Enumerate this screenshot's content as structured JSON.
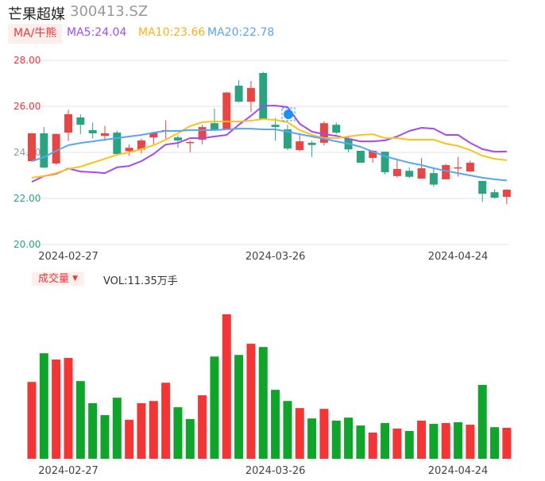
{
  "header": {
    "name": "芒果超媒",
    "code": "300413.SZ"
  },
  "legend": {
    "ma_button": "MA/牛熊",
    "ma5": "MA5:24.04",
    "ma10": "MA10:23.66",
    "ma20": "MA20:22.78"
  },
  "volume_header": {
    "button": "成交量",
    "vol": "VOL:11.35万手"
  },
  "colors": {
    "up": "#e84545",
    "down": "#2aa383",
    "vol_up": "#f33535",
    "vol_down": "#0ea52a",
    "ma5": "#a44af0",
    "ma10": "#fbc21b",
    "ma20": "#58a6f0",
    "grid": "#dde3f0"
  },
  "chart_data": [
    {
      "type": "candlestick",
      "title": "芒果超媒 300413.SZ",
      "ylim": [
        20,
        28
      ],
      "y_ticks": [
        {
          "value": 28,
          "label": "28.00",
          "color": "#f0353a"
        },
        {
          "value": 26,
          "label": "26.00",
          "color": "#f0353a"
        },
        {
          "value": 24,
          "label": "24.00",
          "color": "#999999"
        },
        {
          "value": 22,
          "label": "22.00",
          "color": "#2aa383"
        },
        {
          "value": 20,
          "label": "20.00",
          "color": "#2aa383"
        }
      ],
      "x_ticks": [
        {
          "index": 3,
          "label": "2024-02-27"
        },
        {
          "index": 20,
          "label": "2024-03-26"
        },
        {
          "index": 35,
          "label": "2024-04-24"
        }
      ],
      "ohlc": [
        [
          23.62,
          24.85,
          23.6,
          24.83
        ],
        [
          24.83,
          25.1,
          23.32,
          23.34
        ],
        [
          23.52,
          24.82,
          23.45,
          24.8
        ],
        [
          24.86,
          25.85,
          24.5,
          25.66
        ],
        [
          25.52,
          25.65,
          24.8,
          25.2
        ],
        [
          24.97,
          25.3,
          24.6,
          24.83
        ],
        [
          24.72,
          25.15,
          24.5,
          24.83
        ],
        [
          24.86,
          24.95,
          23.9,
          23.93
        ],
        [
          24.05,
          24.35,
          23.85,
          24.2
        ],
        [
          24.12,
          24.6,
          23.95,
          24.52
        ],
        [
          24.65,
          24.9,
          24.3,
          24.86
        ],
        [
          24.9,
          25.4,
          24.6,
          24.97
        ],
        [
          24.65,
          24.75,
          24.2,
          24.52
        ],
        [
          24.42,
          24.5,
          24.0,
          24.45
        ],
        [
          24.55,
          25.2,
          24.35,
          25.1
        ],
        [
          25.27,
          25.9,
          25.0,
          25.0
        ],
        [
          25.0,
          26.62,
          25.0,
          26.6
        ],
        [
          26.9,
          27.15,
          26.18,
          26.2
        ],
        [
          26.2,
          27.1,
          25.75,
          26.8
        ],
        [
          27.45,
          27.5,
          25.45,
          25.45
        ],
        [
          25.2,
          25.5,
          24.5,
          25.1
        ],
        [
          25.0,
          25.2,
          24.1,
          24.17
        ],
        [
          24.1,
          24.85,
          24.05,
          24.48
        ],
        [
          24.42,
          24.5,
          23.8,
          24.32
        ],
        [
          24.42,
          25.35,
          24.3,
          25.27
        ],
        [
          25.2,
          25.3,
          24.8,
          24.86
        ],
        [
          24.6,
          24.7,
          24.0,
          24.13
        ],
        [
          24.07,
          24.07,
          23.55,
          23.55
        ],
        [
          23.76,
          24.1,
          23.55,
          24.07
        ],
        [
          24.03,
          24.03,
          23.05,
          23.14
        ],
        [
          22.97,
          23.7,
          22.9,
          23.28
        ],
        [
          23.2,
          23.35,
          22.88,
          22.94
        ],
        [
          22.86,
          23.75,
          22.86,
          23.31
        ],
        [
          23.1,
          23.35,
          22.5,
          22.6
        ],
        [
          22.83,
          23.5,
          22.83,
          23.45
        ],
        [
          23.3,
          23.8,
          22.95,
          23.35
        ],
        [
          23.17,
          23.65,
          23.15,
          23.55
        ],
        [
          22.76,
          22.76,
          21.85,
          22.2
        ],
        [
          22.27,
          22.4,
          22.0,
          22.03
        ],
        [
          22.07,
          22.4,
          21.75,
          22.38
        ]
      ],
      "series": [
        {
          "name": "MA5",
          "values": [
            22.72,
            22.97,
            23.07,
            23.3,
            23.17,
            23.14,
            23.1,
            23.35,
            23.41,
            23.62,
            23.93,
            24.34,
            24.41,
            24.62,
            24.62,
            24.69,
            24.76,
            25.2,
            25.59,
            26.03,
            26.03,
            25.97,
            25.24,
            24.9,
            24.79,
            24.72,
            24.59,
            24.48,
            24.48,
            24.52,
            24.69,
            24.93,
            25.07,
            25.03,
            24.76,
            24.76,
            24.41,
            24.14,
            24.03,
            24.04
          ]
        },
        {
          "name": "MA10",
          "values": [
            22.9,
            22.97,
            23.1,
            23.28,
            23.38,
            23.55,
            23.72,
            23.9,
            24.0,
            24.14,
            24.31,
            24.55,
            24.83,
            25.14,
            25.31,
            25.34,
            25.34,
            25.34,
            25.38,
            25.45,
            25.41,
            25.31,
            24.97,
            24.76,
            24.62,
            24.62,
            24.69,
            24.76,
            24.79,
            24.62,
            24.62,
            24.55,
            24.55,
            24.55,
            24.38,
            24.28,
            24.1,
            23.86,
            23.72,
            23.66
          ]
        },
        {
          "name": "MA20",
          "values": [
            23.62,
            23.79,
            24.07,
            24.31,
            24.41,
            24.48,
            24.55,
            24.62,
            24.69,
            24.76,
            24.86,
            24.93,
            24.93,
            24.97,
            24.97,
            24.97,
            25.0,
            25.03,
            25.03,
            25.0,
            25.0,
            24.9,
            24.79,
            24.69,
            24.59,
            24.48,
            24.38,
            24.24,
            24.03,
            23.83,
            23.69,
            23.55,
            23.45,
            23.31,
            23.2,
            23.1,
            23.0,
            22.9,
            22.83,
            22.78
          ]
        }
      ]
    },
    {
      "type": "bar",
      "title": "成交量",
      "unit": "万手",
      "values": [
        28.2,
        38.7,
        36.4,
        37.0,
        28.5,
        20.4,
        16.0,
        22.4,
        14.3,
        20.4,
        21.2,
        27.9,
        18.9,
        14.6,
        23.3,
        37.5,
        53.0,
        38.1,
        42.2,
        41.0,
        25.3,
        21.2,
        18.6,
        14.8,
        18.3,
        14.0,
        15.1,
        12.2,
        9.6,
        13.1,
        11.1,
        10.2,
        14.0,
        12.8,
        13.1,
        13.4,
        12.5,
        27.1,
        11.6,
        11.35
      ],
      "up": [
        1,
        0,
        1,
        1,
        0,
        0,
        0,
        0,
        1,
        1,
        1,
        1,
        0,
        0,
        1,
        0,
        1,
        0,
        1,
        0,
        0,
        0,
        1,
        0,
        1,
        0,
        0,
        0,
        1,
        0,
        1,
        0,
        1,
        0,
        1,
        0,
        1,
        0,
        0,
        1
      ],
      "x_ticks": [
        {
          "index": 3,
          "label": "2024-02-27"
        },
        {
          "index": 20,
          "label": "2024-03-26"
        },
        {
          "index": 35,
          "label": "2024-04-24"
        }
      ]
    }
  ]
}
